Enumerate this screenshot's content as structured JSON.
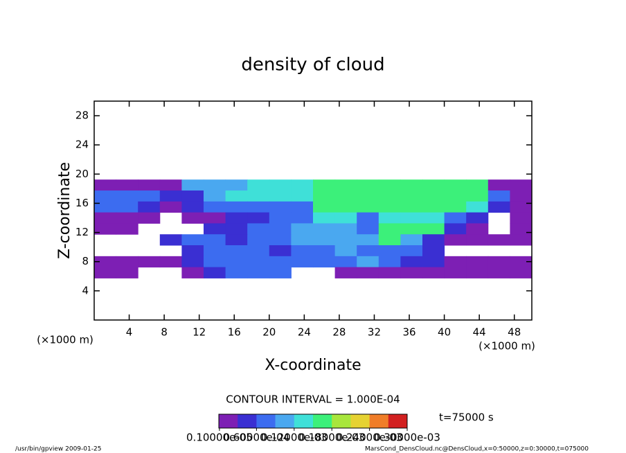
{
  "chart_data": {
    "type": "heatmap",
    "title": "density of cloud",
    "x_label": "X-coordinate",
    "y_label": "Z-coordinate",
    "x_unit": "(×1000 m)",
    "y_unit": "(×1000 m)",
    "contour_note": "CONTOUR INTERVAL = 1.000E-04",
    "time_label": "t=75000 s",
    "footer_left": "/usr/bin/gpview  2009-01-25",
    "footer_right": "MarsCond_DensCloud.nc@DensCloud,x=0:50000,z=0:30000,t=075000",
    "xlim": [
      0,
      50
    ],
    "ylim": [
      0,
      30
    ],
    "xticks": [
      4,
      8,
      12,
      16,
      20,
      24,
      28,
      32,
      36,
      40,
      44,
      48
    ],
    "yticks": [
      4,
      8,
      12,
      16,
      20,
      24,
      28
    ],
    "x": [
      1.25,
      3.75,
      6.25,
      8.75,
      11.25,
      13.75,
      16.25,
      18.75,
      21.25,
      23.75,
      26.25,
      28.75,
      31.25,
      33.75,
      36.25,
      38.75,
      41.25,
      43.75,
      46.25,
      48.75
    ],
    "z": [
      18.5,
      17,
      15.5,
      14,
      12.5,
      11,
      9.5,
      8,
      6.5
    ],
    "values": [
      [
        1e-05,
        1e-05,
        1e-05,
        1e-05,
        0.0001,
        0.0001,
        0.0001,
        0.00013,
        0.00013,
        0.00013,
        0.00016,
        0.00016,
        0.00016,
        0.00016,
        0.00016,
        0.00016,
        0.00016,
        0.00016,
        1e-05,
        1e-05
      ],
      [
        7e-05,
        7e-05,
        7e-05,
        4e-05,
        4e-05,
        0.0001,
        0.00013,
        0.00013,
        0.00013,
        0.00013,
        0.00016,
        0.00016,
        0.00016,
        0.00016,
        0.00016,
        0.00016,
        0.00016,
        0.00016,
        7e-05,
        1e-05
      ],
      [
        7e-05,
        7e-05,
        4e-05,
        1e-05,
        4e-05,
        7e-05,
        7e-05,
        7e-05,
        7e-05,
        7e-05,
        0.00016,
        0.00016,
        0.00016,
        0.00016,
        0.00016,
        0.00016,
        0.00016,
        0.00013,
        4e-05,
        1e-05
      ],
      [
        1e-05,
        1e-05,
        1e-05,
        null,
        1e-05,
        1e-05,
        4e-05,
        4e-05,
        7e-05,
        7e-05,
        0.00013,
        0.00013,
        7e-05,
        0.00013,
        0.00013,
        0.00013,
        7e-05,
        4e-05,
        null,
        1e-05
      ],
      [
        1e-05,
        1e-05,
        null,
        null,
        null,
        4e-05,
        4e-05,
        7e-05,
        7e-05,
        0.0001,
        0.0001,
        0.0001,
        7e-05,
        0.00016,
        0.00016,
        0.00016,
        4e-05,
        1e-05,
        null,
        1e-05
      ],
      [
        null,
        null,
        null,
        4e-05,
        7e-05,
        7e-05,
        4e-05,
        7e-05,
        7e-05,
        0.0001,
        0.0001,
        0.0001,
        0.0001,
        0.00016,
        0.0001,
        4e-05,
        1e-05,
        1e-05,
        1e-05,
        1e-05
      ],
      [
        null,
        null,
        null,
        null,
        4e-05,
        7e-05,
        7e-05,
        7e-05,
        4e-05,
        7e-05,
        7e-05,
        0.0001,
        7e-05,
        7e-05,
        7e-05,
        4e-05,
        null,
        null,
        null,
        null
      ],
      [
        1e-05,
        1e-05,
        1e-05,
        1e-05,
        4e-05,
        7e-05,
        7e-05,
        7e-05,
        7e-05,
        7e-05,
        7e-05,
        7e-05,
        0.0001,
        7e-05,
        4e-05,
        4e-05,
        1e-05,
        1e-05,
        1e-05,
        1e-05
      ],
      [
        1e-05,
        1e-05,
        null,
        null,
        1e-05,
        4e-05,
        7e-05,
        7e-05,
        7e-05,
        null,
        null,
        1e-05,
        1e-05,
        1e-05,
        1e-05,
        1e-05,
        1e-05,
        1e-05,
        1e-05,
        1e-05
      ]
    ],
    "clim": [
      0,
      0.0003
    ],
    "colormap": [
      "#7d1fb4",
      "#3a2fd2",
      "#3c6cf0",
      "#4aa8f0",
      "#3fe0d8",
      "#3cf07a",
      "#a8e63c",
      "#e6d232",
      "#f07d28",
      "#d22020"
    ],
    "colorbar_ticks": [
      {
        "value": 1e-06,
        "label": "0.10000e-05"
      },
      {
        "value": 6e-05,
        "label": "0.60000e-04"
      },
      {
        "value": 0.00012,
        "label": "0.12000e-03"
      },
      {
        "value": 0.00018,
        "label": "0.18000e-03"
      },
      {
        "value": 0.00024,
        "label": "0.24000e-03"
      },
      {
        "value": 0.0003,
        "label": "0.30000e-03"
      }
    ]
  }
}
